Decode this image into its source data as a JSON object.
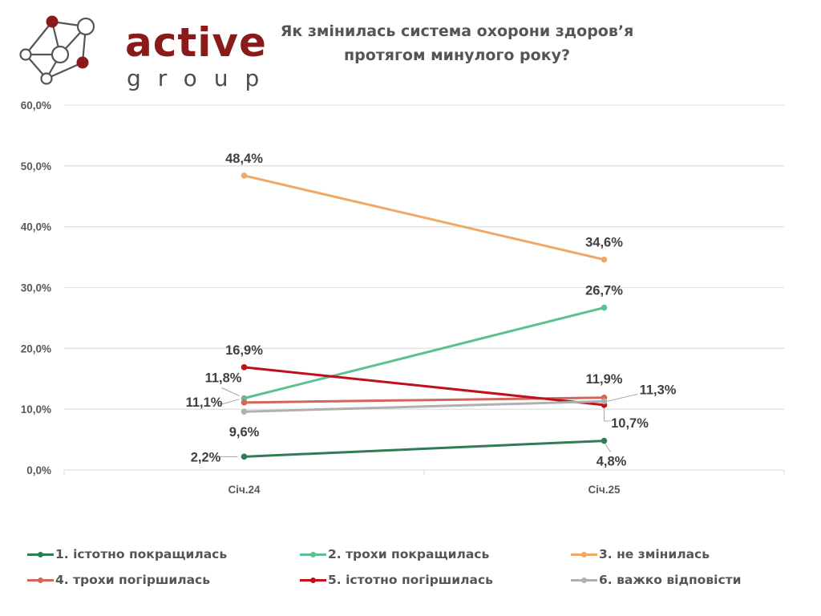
{
  "brand": {
    "name": "active",
    "subname": "group",
    "colors": {
      "primary": "#8b1a1a",
      "secondary": "#4d4d4d"
    }
  },
  "chart_data": {
    "type": "line",
    "title": "Як змінилась система охорони здоров’я протягом минулого року?",
    "categories": [
      "Січ.24",
      "Січ.25"
    ],
    "xlabel": "",
    "ylabel": "",
    "ylim": [
      0,
      60
    ],
    "y_ticks": [
      0,
      10,
      20,
      30,
      40,
      50,
      60
    ],
    "y_tick_labels": [
      "0,0%",
      "10,0%",
      "20,0%",
      "30,0%",
      "40,0%",
      "50,0%",
      "60,0%"
    ],
    "grid": true,
    "legend_position": "bottom",
    "series": [
      {
        "name": "1. істотно покращилась",
        "color": "#2e7d55",
        "values": [
          2.2,
          4.8
        ],
        "labels": [
          "2,2%",
          "4,8%"
        ]
      },
      {
        "name": "2. трохи покращилась",
        "color": "#5cc091",
        "values": [
          11.8,
          26.7
        ],
        "labels": [
          "11,8%",
          "26,7%"
        ]
      },
      {
        "name": "3. не змінилась",
        "color": "#f0a868",
        "values": [
          48.4,
          34.6
        ],
        "labels": [
          "48,4%",
          "34,6%"
        ]
      },
      {
        "name": "4. трохи погіршилась",
        "color": "#d2665a",
        "values": [
          11.1,
          11.9
        ],
        "labels": [
          "11,1%",
          "11,9%"
        ]
      },
      {
        "name": "5. істотно погіршилась",
        "color": "#c0101a",
        "values": [
          16.9,
          10.7
        ],
        "labels": [
          "16,9%",
          "10,7%"
        ]
      },
      {
        "name": "6. важко відповісти",
        "color": "#b0b0b0",
        "values": [
          9.6,
          11.3
        ],
        "labels": [
          "9,6%",
          "11,3%"
        ]
      }
    ]
  }
}
